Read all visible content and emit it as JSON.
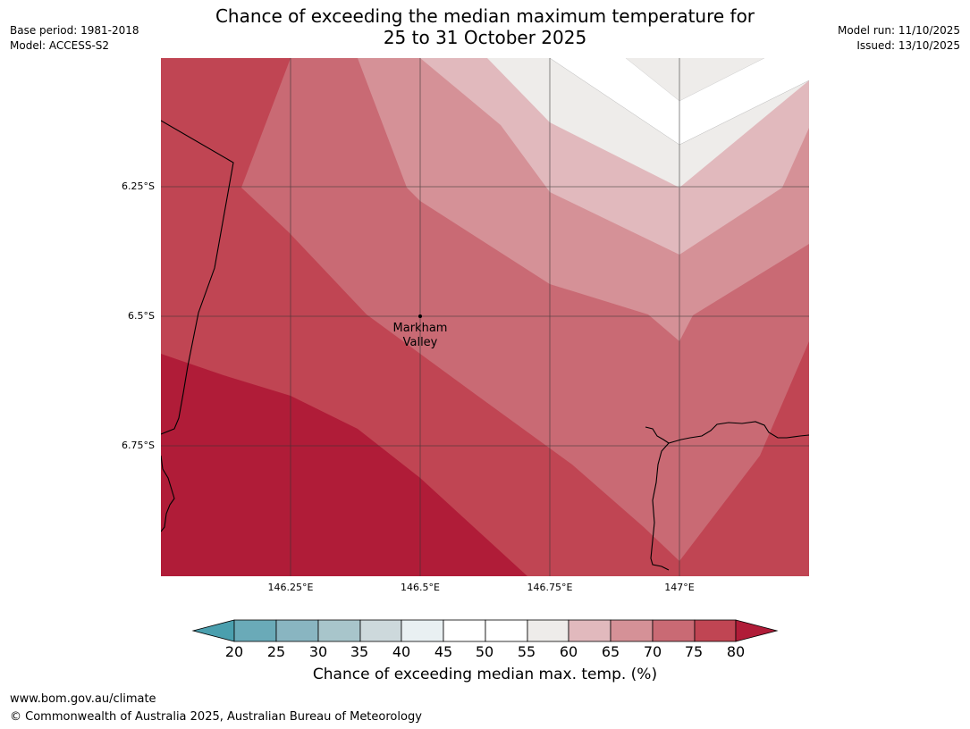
{
  "header": {
    "title_line1": "Chance of exceeding the median maximum temperature for",
    "title_line2": "25 to 31 October 2025",
    "base_period": "Base period: 1981-2018",
    "model": "Model: ACCESS-S2",
    "model_run": "Model run: 11/10/2025",
    "issued": "Issued: 13/10/2025"
  },
  "map": {
    "latitude_labels": [
      "6.25°S",
      "6.5°S",
      "6.75°S"
    ],
    "longitude_labels": [
      "146.25°E",
      "146.5°E",
      "146.75°E",
      "147°E"
    ],
    "place": {
      "name_line1": "Markham",
      "name_line2": "Valley"
    }
  },
  "colorbar": {
    "title": "Chance of exceeding median max. temp. (%)",
    "ticks": [
      "20",
      "25",
      "30",
      "35",
      "40",
      "45",
      "50",
      "55",
      "60",
      "65",
      "70",
      "75",
      "80"
    ],
    "colors": {
      "below_20": "#4a9fae",
      "20_25": "#6aaab8",
      "25_30": "#89b5c1",
      "30_35": "#a8c5cb",
      "35_40": "#cdd9dc",
      "40_45": "#e9f0f2",
      "45_50": "#ffffff",
      "50_55": "#ffffff",
      "55_60": "#eeecea",
      "60_65": "#e1b9bd",
      "65_70": "#d59197",
      "70_75": "#c96a74",
      "75_80": "#c04553",
      "above_80": "#b01c38"
    }
  },
  "footer": {
    "website": "www.bom.gov.au/climate",
    "copyright": "© Commonwealth of Australia 2025, Australian Bureau of Meteorology"
  }
}
